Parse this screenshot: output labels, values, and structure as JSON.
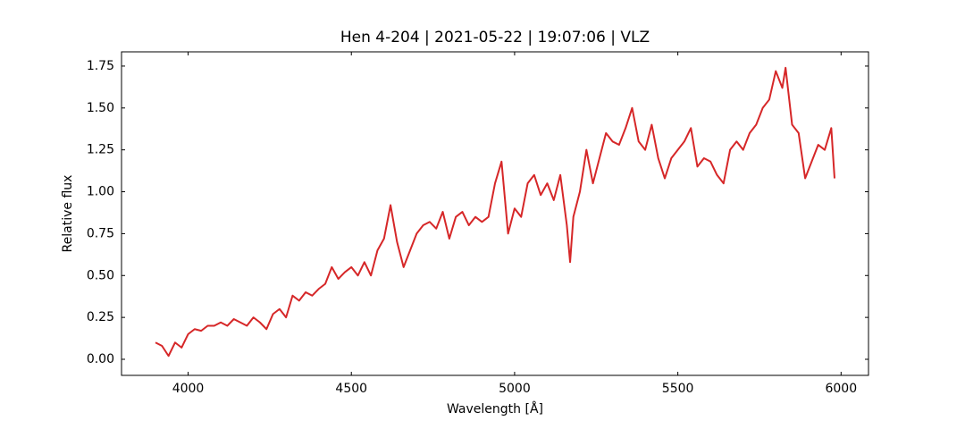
{
  "chart_data": {
    "type": "line",
    "title": "Hen 4-204 | 2021-05-22 | 19:07:06 | VLZ",
    "x_label": "Wavelength [Å]",
    "y_label": "Relative flux",
    "color": "#d62728",
    "xlim": [
      3796,
      6084
    ],
    "ylim": [
      -0.096,
      1.835
    ],
    "xticks": [
      4000,
      4500,
      5000,
      5500,
      6000
    ],
    "yticks": [
      {
        "value": 0,
        "label": "0.00"
      },
      {
        "value": 0.25,
        "label": "0.25"
      },
      {
        "value": 0.5,
        "label": "0.50"
      },
      {
        "value": 0.75,
        "label": "0.75"
      },
      {
        "value": 1,
        "label": "1.00"
      },
      {
        "value": 1.25,
        "label": "1.25"
      },
      {
        "value": 1.5,
        "label": "1.50"
      },
      {
        "value": 1.75,
        "label": "1.75"
      }
    ],
    "x": [
      3900,
      3920,
      3940,
      3960,
      3980,
      4000,
      4020,
      4040,
      4060,
      4080,
      4100,
      4120,
      4140,
      4160,
      4180,
      4200,
      4220,
      4240,
      4260,
      4280,
      4300,
      4320,
      4340,
      4360,
      4380,
      4400,
      4420,
      4440,
      4460,
      4480,
      4500,
      4520,
      4540,
      4560,
      4580,
      4600,
      4620,
      4640,
      4660,
      4680,
      4700,
      4720,
      4740,
      4760,
      4780,
      4800,
      4820,
      4840,
      4860,
      4880,
      4900,
      4920,
      4940,
      4960,
      4980,
      5000,
      5020,
      5040,
      5060,
      5080,
      5100,
      5120,
      5140,
      5160,
      5170,
      5180,
      5200,
      5220,
      5240,
      5260,
      5280,
      5300,
      5320,
      5340,
      5360,
      5380,
      5400,
      5420,
      5440,
      5460,
      5480,
      5500,
      5520,
      5540,
      5560,
      5580,
      5600,
      5620,
      5640,
      5660,
      5680,
      5700,
      5720,
      5740,
      5760,
      5780,
      5800,
      5820,
      5830,
      5850,
      5870,
      5890,
      5910,
      5930,
      5950,
      5970,
      5980
    ],
    "values": [
      0.1,
      0.08,
      0.02,
      0.1,
      0.07,
      0.15,
      0.18,
      0.17,
      0.2,
      0.2,
      0.22,
      0.2,
      0.24,
      0.22,
      0.2,
      0.25,
      0.22,
      0.18,
      0.27,
      0.3,
      0.25,
      0.38,
      0.35,
      0.4,
      0.38,
      0.42,
      0.45,
      0.55,
      0.48,
      0.52,
      0.55,
      0.5,
      0.58,
      0.5,
      0.65,
      0.72,
      0.92,
      0.7,
      0.55,
      0.65,
      0.75,
      0.8,
      0.82,
      0.78,
      0.88,
      0.72,
      0.85,
      0.88,
      0.8,
      0.85,
      0.82,
      0.85,
      1.05,
      1.18,
      0.75,
      0.9,
      0.85,
      1.05,
      1.1,
      0.98,
      1.05,
      0.95,
      1.1,
      0.8,
      0.58,
      0.85,
      1.0,
      1.25,
      1.05,
      1.2,
      1.35,
      1.3,
      1.28,
      1.38,
      1.5,
      1.3,
      1.25,
      1.4,
      1.2,
      1.08,
      1.2,
      1.25,
      1.3,
      1.38,
      1.15,
      1.2,
      1.18,
      1.1,
      1.05,
      1.25,
      1.3,
      1.25,
      1.35,
      1.4,
      1.5,
      1.55,
      1.72,
      1.62,
      1.74,
      1.4,
      1.35,
      1.08,
      1.18,
      1.28,
      1.25,
      1.38,
      1.08
    ]
  }
}
